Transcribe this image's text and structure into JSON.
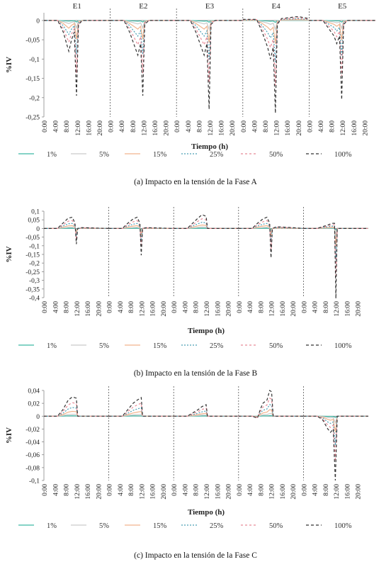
{
  "chart_data": [
    {
      "type": "line",
      "caption": "(a) Impacto en la tensión de la Fase A",
      "xlabel": "Tiempo (h)",
      "ylabel": "%IV",
      "ylim": [
        -0.25,
        0.02
      ],
      "yticks": [
        0,
        -0.05,
        -0.1,
        -0.15,
        -0.2,
        -0.25
      ],
      "ytick_labels": [
        "0",
        "-0,05",
        "-0,1",
        "-0,15",
        "-0,2",
        "-0,25"
      ],
      "segments": [
        "E1",
        "E2",
        "E3",
        "E4",
        "E5"
      ],
      "x_tick_labels": [
        "0:00",
        "4:00",
        "8:00",
        "12:00",
        "16:00",
        "20:00"
      ],
      "legend": [
        "1%",
        "5%",
        "15%",
        "25%",
        "50%",
        "100%"
      ],
      "series_100_by_segment": [
        [
          [
            0,
            0
          ],
          [
            5,
            0
          ],
          [
            7,
            -0.03
          ],
          [
            9,
            -0.08
          ],
          [
            10,
            -0.05
          ],
          [
            11,
            -0.03
          ],
          [
            11.8,
            -0.195
          ],
          [
            12.5,
            -0.01
          ],
          [
            14,
            0
          ],
          [
            24,
            0
          ]
        ],
        [
          [
            0,
            0
          ],
          [
            5,
            0
          ],
          [
            7,
            -0.03
          ],
          [
            9,
            -0.07
          ],
          [
            10,
            -0.09
          ],
          [
            11,
            -0.06
          ],
          [
            11.8,
            -0.195
          ],
          [
            12.5,
            -0.01
          ],
          [
            14,
            0
          ],
          [
            24,
            0
          ]
        ],
        [
          [
            0,
            0
          ],
          [
            5,
            0
          ],
          [
            7,
            -0.03
          ],
          [
            9,
            -0.07
          ],
          [
            10,
            -0.09
          ],
          [
            11,
            -0.06
          ],
          [
            11.8,
            -0.23
          ],
          [
            12.5,
            -0.01
          ],
          [
            14,
            0
          ],
          [
            24,
            0
          ]
        ],
        [
          [
            0,
            0.003
          ],
          [
            5,
            0.003
          ],
          [
            7,
            -0.03
          ],
          [
            9,
            -0.07
          ],
          [
            10,
            -0.1
          ],
          [
            11,
            -0.07
          ],
          [
            11.8,
            -0.24
          ],
          [
            12.5,
            -0.01
          ],
          [
            14,
            0.005
          ],
          [
            20,
            0.01
          ],
          [
            24,
            0.005
          ]
        ],
        [
          [
            0,
            0
          ],
          [
            5,
            0
          ],
          [
            7,
            -0.02
          ],
          [
            9,
            -0.04
          ],
          [
            10,
            -0.06
          ],
          [
            11,
            -0.04
          ],
          [
            11.8,
            -0.205
          ],
          [
            12.5,
            -0.01
          ],
          [
            14,
            0
          ],
          [
            24,
            0
          ]
        ]
      ]
    },
    {
      "type": "line",
      "caption": "(b) Impacto en la tensión de la Fase B",
      "xlabel": "Tiempo (h)",
      "ylabel": "%IV",
      "ylim": [
        -0.4,
        0.1
      ],
      "yticks": [
        0.1,
        0.05,
        0,
        -0.05,
        -0.1,
        -0.15,
        -0.2,
        -0.25,
        -0.3,
        -0.35,
        -0.4
      ],
      "ytick_labels": [
        "0,1",
        "0,05",
        "0",
        "-0,05",
        "-0,1",
        "-0,15",
        "-0,2",
        "-0,25",
        "-0,3",
        "-0,35",
        "-0,4"
      ],
      "x_tick_labels": [
        "0:00",
        "4:00",
        "8:00",
        "12:00",
        "16:00",
        "20:00"
      ],
      "legend": [
        "1%",
        "5%",
        "15%",
        "25%",
        "50%",
        "100%"
      ],
      "series_100_by_segment": [
        [
          [
            0,
            0
          ],
          [
            5,
            0
          ],
          [
            7,
            0.03
          ],
          [
            9,
            0.06
          ],
          [
            10.5,
            0.065
          ],
          [
            11.5,
            0.03
          ],
          [
            12,
            -0.09
          ],
          [
            12.5,
            0
          ],
          [
            14,
            0.005
          ],
          [
            24,
            0
          ]
        ],
        [
          [
            0,
            0
          ],
          [
            5,
            0
          ],
          [
            7,
            0.03
          ],
          [
            9,
            0.055
          ],
          [
            10.5,
            0.065
          ],
          [
            11.5,
            0.03
          ],
          [
            12,
            -0.155
          ],
          [
            12.5,
            0
          ],
          [
            14,
            0.005
          ],
          [
            24,
            0
          ]
        ],
        [
          [
            0,
            0
          ],
          [
            5,
            0
          ],
          [
            7,
            0.03
          ],
          [
            9,
            0.06
          ],
          [
            10.5,
            0.08
          ],
          [
            12,
            0.07
          ],
          [
            12.5,
            0
          ],
          [
            14,
            0
          ],
          [
            24,
            0
          ]
        ],
        [
          [
            0,
            0
          ],
          [
            5,
            0
          ],
          [
            7,
            0.03
          ],
          [
            9,
            0.055
          ],
          [
            10.5,
            0.065
          ],
          [
            11.5,
            0.03
          ],
          [
            12,
            -0.17
          ],
          [
            12.5,
            0
          ],
          [
            14,
            0.01
          ],
          [
            20,
            0.005
          ],
          [
            24,
            0
          ]
        ],
        [
          [
            0,
            0
          ],
          [
            5,
            0
          ],
          [
            7,
            0.01
          ],
          [
            9,
            0.02
          ],
          [
            10.5,
            0.03
          ],
          [
            11.5,
            0.03
          ],
          [
            12,
            -0.405
          ],
          [
            12.5,
            0
          ],
          [
            14,
            0
          ],
          [
            24,
            0
          ]
        ]
      ]
    },
    {
      "type": "line",
      "caption": "(c) Impacto en la tensión de la Fase C",
      "xlabel": "Tiempo (h)",
      "ylabel": "%IV",
      "ylim": [
        -0.1,
        0.04
      ],
      "yticks": [
        0.04,
        0.02,
        0,
        -0.02,
        -0.04,
        -0.06,
        -0.08,
        -0.1
      ],
      "ytick_labels": [
        "0,04",
        "0,02",
        "0",
        "-0,02",
        "-0,04",
        "-0,06",
        "-0,08",
        "-0,1"
      ],
      "x_tick_labels": [
        "0:00",
        "4:00",
        "8:00",
        "12:00",
        "16:00",
        "20:00"
      ],
      "legend": [
        "1%",
        "5%",
        "15%",
        "25%",
        "50%",
        "100%"
      ],
      "series_100_by_segment": [
        [
          [
            0,
            0
          ],
          [
            5,
            0
          ],
          [
            7,
            0.01
          ],
          [
            9,
            0.025
          ],
          [
            10.5,
            0.03
          ],
          [
            12,
            0.028
          ],
          [
            12.5,
            0
          ],
          [
            24,
            0
          ]
        ],
        [
          [
            0,
            0
          ],
          [
            5,
            0
          ],
          [
            7,
            0.01
          ],
          [
            9,
            0.02
          ],
          [
            10.5,
            0.025
          ],
          [
            12,
            0.029
          ],
          [
            12.5,
            0
          ],
          [
            24,
            0
          ]
        ],
        [
          [
            0,
            0
          ],
          [
            5,
            0
          ],
          [
            7,
            0.005
          ],
          [
            9,
            0.01
          ],
          [
            10.5,
            0.015
          ],
          [
            12,
            0.018
          ],
          [
            12.5,
            0
          ],
          [
            24,
            0
          ]
        ],
        [
          [
            0,
            0
          ],
          [
            5,
            0
          ],
          [
            7,
            -0.003
          ],
          [
            8,
            0.01
          ],
          [
            9,
            0.02
          ],
          [
            10.5,
            0.025
          ],
          [
            11.5,
            0.04
          ],
          [
            12.2,
            0.038
          ],
          [
            12.8,
            0
          ],
          [
            24,
            0
          ]
        ],
        [
          [
            0,
            0
          ],
          [
            5,
            0
          ],
          [
            7,
            -0.005
          ],
          [
            9,
            -0.02
          ],
          [
            10,
            -0.025
          ],
          [
            11,
            -0.02
          ],
          [
            11.8,
            -0.1
          ],
          [
            12.5,
            0
          ],
          [
            24,
            0
          ]
        ]
      ]
    }
  ],
  "colors": {
    "s1": "#3cb9a5",
    "s5": "#c9c9c9",
    "s15": "#f2b48d",
    "s25": "#4a9fb5",
    "s50": "#e88a96",
    "s100": "#333333"
  }
}
